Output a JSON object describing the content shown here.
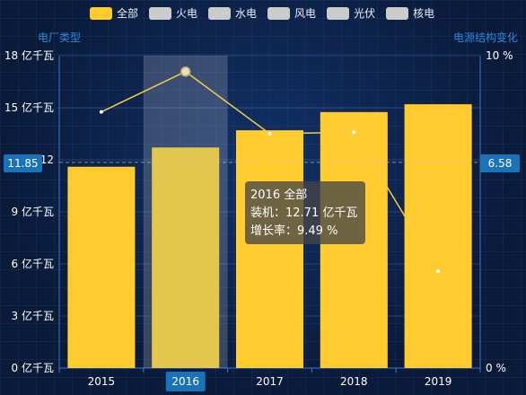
{
  "legend": [
    {
      "label": "全部",
      "color": "#ffcb2f",
      "active": true
    },
    {
      "label": "火电",
      "color": "#cccccc",
      "active": false
    },
    {
      "label": "水电",
      "color": "#cccccc",
      "active": false
    },
    {
      "label": "风电",
      "color": "#cccccc",
      "active": false
    },
    {
      "label": "光伏",
      "color": "#cccccc",
      "active": false
    },
    {
      "label": "核电",
      "color": "#cccccc",
      "active": false
    }
  ],
  "left_axis_title": "电厂类型",
  "right_axis_title": "电源结构变化",
  "tooltip": {
    "line1": "2016 全部",
    "line2": "装机：12.71 亿千瓦",
    "line3": "增长率：9.49 %"
  },
  "pointer_left": "11.85",
  "pointer_right": "6.58",
  "chart_data": {
    "type": "bar",
    "categories": [
      "2015",
      "2016",
      "2017",
      "2018",
      "2019"
    ],
    "highlighted_category": "2016",
    "series": [
      {
        "name": "全部",
        "kind": "bar",
        "axis": "left",
        "color": "#ffcb2f",
        "values": [
          11.6,
          12.71,
          13.7,
          14.75,
          15.2
        ]
      },
      {
        "kind": "line",
        "axis": "right",
        "color": "#f4cd42",
        "values": [
          8.2,
          9.49,
          7.5,
          7.55,
          3.1
        ]
      }
    ],
    "left_axis": {
      "min": 0,
      "max": 18,
      "ticks": [
        0,
        3,
        6,
        9,
        12,
        15,
        18
      ],
      "tick_labels": [
        "0 亿千瓦",
        "3 亿千瓦",
        "6 亿千瓦",
        "9 亿千瓦",
        "12",
        "15 亿千瓦",
        "18 亿千瓦"
      ]
    },
    "right_axis": {
      "min": 0,
      "max": 10,
      "ticks": [
        0,
        10
      ],
      "tick_labels": [
        "0 %",
        "10 %"
      ]
    },
    "reference_line": {
      "left_value": 11.85,
      "right_value": 6.58
    }
  }
}
